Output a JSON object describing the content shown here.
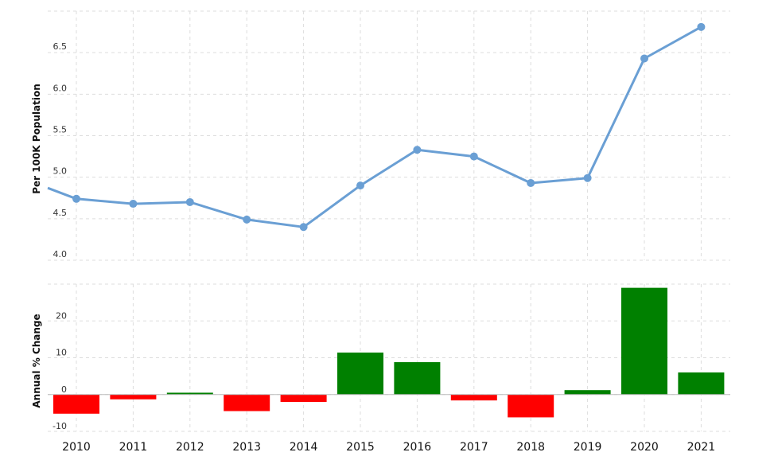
{
  "chart_data": [
    {
      "type": "line",
      "ylabel": "Per 100K Population",
      "categories": [
        "2010",
        "2011",
        "2012",
        "2013",
        "2014",
        "2015",
        "2016",
        "2017",
        "2018",
        "2019",
        "2020",
        "2021"
      ],
      "series": [
        {
          "values": [
            4.74,
            4.68,
            4.7,
            4.49,
            4.4,
            4.9,
            5.33,
            5.25,
            4.93,
            4.99,
            6.43,
            6.81
          ]
        }
      ],
      "ylim": [
        4.0,
        7.0
      ],
      "yticks": [
        "4.0",
        "4.5",
        "5.0",
        "5.5",
        "6.0",
        "6.5"
      ],
      "color": "#6a9fd4",
      "grid": true
    },
    {
      "type": "bar",
      "ylabel": "Annual % Change",
      "categories": [
        "2010",
        "2011",
        "2012",
        "2013",
        "2014",
        "2015",
        "2016",
        "2017",
        "2018",
        "2019",
        "2020",
        "2021"
      ],
      "series": [
        {
          "values": [
            -5.2,
            -1.3,
            0.5,
            -4.5,
            -2.0,
            11.4,
            8.8,
            -1.6,
            -6.2,
            1.2,
            29.0,
            6.0
          ]
        }
      ],
      "ylim": [
        -10,
        30
      ],
      "yticks": [
        "-10",
        "0",
        "10",
        "20"
      ],
      "colors": {
        "positive": "#008000",
        "negative": "#ff0000"
      },
      "grid": true
    }
  ]
}
